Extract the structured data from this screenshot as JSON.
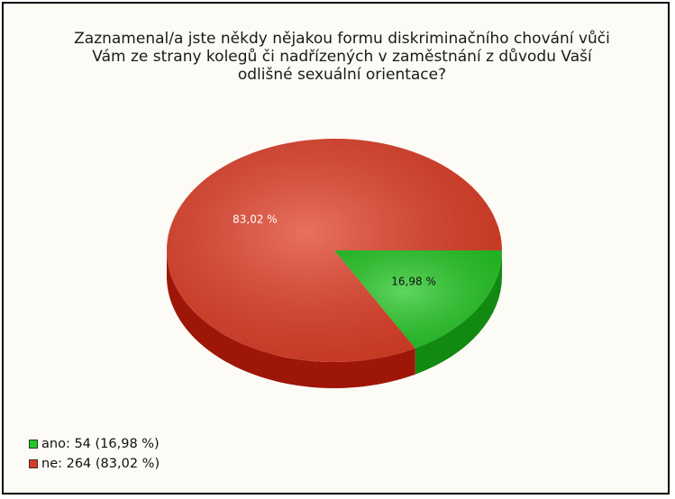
{
  "chart_data": {
    "type": "pie",
    "title": "Zaznamenal/a jste někdy nějakou formu diskriminačního chování vůči\nVám ze strany kolegů či nadřízených v zaměstnání z důvodu Vaší\nodlišné sexuální orientace?",
    "slices": [
      {
        "label": "ano",
        "value": 54,
        "percent": "16,98 %",
        "legend": "ano: 54 (16,98 %)",
        "color": "#22c822",
        "side_color": "#128a12"
      },
      {
        "label": "ne",
        "value": 264,
        "percent": "83,02 %",
        "legend": "ne: 264 (83,02 %)",
        "color": "#e03a22",
        "side_color": "#9e1608"
      }
    ],
    "legend_position": "bottom-left",
    "style": "3d"
  }
}
